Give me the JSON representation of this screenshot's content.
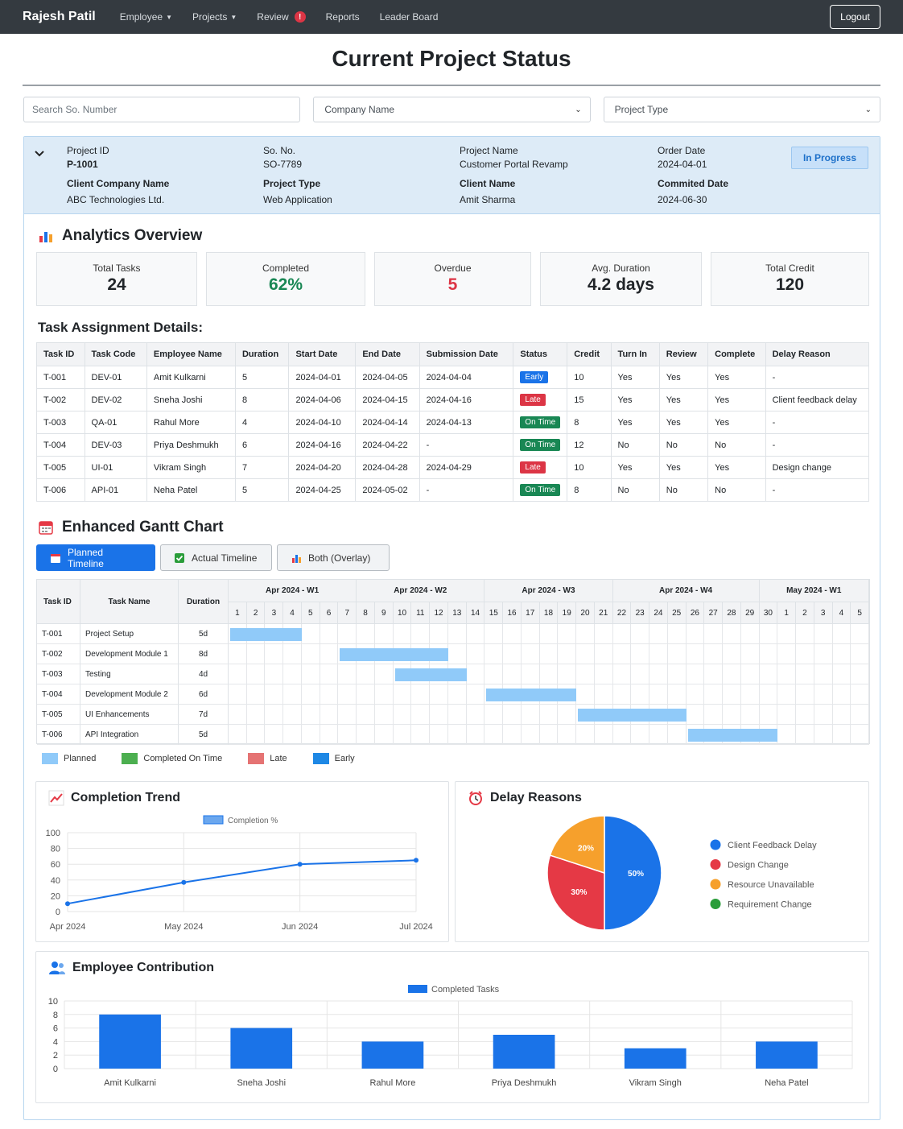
{
  "nav": {
    "brand": "Rajesh Patil",
    "items": [
      "Employee",
      "Projects",
      "Review",
      "Reports",
      "Leader Board"
    ],
    "review_badge": "!",
    "logout": "Logout"
  },
  "page_title": "Current Project Status",
  "filters": {
    "search_placeholder": "Search So. Number",
    "company": "Company Name",
    "type": "Project Type"
  },
  "project": {
    "labels": {
      "id": "Project ID",
      "so": "So. No.",
      "name": "Project Name",
      "order_date": "Order Date",
      "client_company": "Client Company Name",
      "type": "Project Type",
      "client_name": "Client Name",
      "committed": "Commited Date"
    },
    "id": "P-1001",
    "so": "SO-7789",
    "name": "Customer Portal Revamp",
    "order_date": "2024-04-01",
    "client_company": "ABC Technologies Ltd.",
    "type": "Web Application",
    "client_name": "Amit Sharma",
    "committed": "2024-06-30",
    "status": "In Progress"
  },
  "analytics": {
    "title": "Analytics Overview",
    "stats": [
      {
        "label": "Total Tasks",
        "value": "24",
        "color": "#212529"
      },
      {
        "label": "Completed",
        "value": "62%",
        "color": "#198754"
      },
      {
        "label": "Overdue",
        "value": "5",
        "color": "#dc3545"
      },
      {
        "label": "Avg. Duration",
        "value": "4.2 days",
        "color": "#212529"
      },
      {
        "label": "Total Credit",
        "value": "120",
        "color": "#212529"
      }
    ]
  },
  "tasks": {
    "title": "Task Assignment Details:",
    "headers": [
      "Task ID",
      "Task Code",
      "Employee Name",
      "Duration",
      "Start Date",
      "End Date",
      "Submission Date",
      "Status",
      "Credit",
      "Turn In",
      "Review",
      "Complete",
      "Delay Reason"
    ],
    "rows": [
      [
        "T-001",
        "DEV-01",
        "Amit Kulkarni",
        "5",
        "2024-04-01",
        "2024-04-05",
        "2024-04-04",
        "Early",
        "10",
        "Yes",
        "Yes",
        "Yes",
        "-"
      ],
      [
        "T-002",
        "DEV-02",
        "Sneha Joshi",
        "8",
        "2024-04-06",
        "2024-04-15",
        "2024-04-16",
        "Late",
        "15",
        "Yes",
        "Yes",
        "Yes",
        "Client feedback delay"
      ],
      [
        "T-003",
        "QA-01",
        "Rahul More",
        "4",
        "2024-04-10",
        "2024-04-14",
        "2024-04-13",
        "On Time",
        "8",
        "Yes",
        "Yes",
        "Yes",
        "-"
      ],
      [
        "T-004",
        "DEV-03",
        "Priya Deshmukh",
        "6",
        "2024-04-16",
        "2024-04-22",
        "-",
        "On Time",
        "12",
        "No",
        "No",
        "No",
        "-"
      ],
      [
        "T-005",
        "UI-01",
        "Vikram Singh",
        "7",
        "2024-04-20",
        "2024-04-28",
        "2024-04-29",
        "Late",
        "10",
        "Yes",
        "Yes",
        "Yes",
        "Design change"
      ],
      [
        "T-006",
        "API-01",
        "Neha Patel",
        "5",
        "2024-04-25",
        "2024-05-02",
        "-",
        "On Time",
        "8",
        "No",
        "No",
        "No",
        "-"
      ]
    ]
  },
  "gantt": {
    "title": "Enhanced Gantt Chart",
    "tabs": [
      "Planned Timeline",
      "Actual Timeline",
      "Both (Overlay)"
    ],
    "headers": [
      "Task ID",
      "Task Name",
      "Duration"
    ],
    "weeks": [
      "Apr 2024 - W1",
      "Apr 2024 - W2",
      "Apr 2024 - W3",
      "Apr 2024 - W4",
      "May 2024 - W1"
    ],
    "days": [
      "1",
      "2",
      "3",
      "4",
      "5",
      "6",
      "7",
      "8",
      "9",
      "10",
      "11",
      "12",
      "13",
      "14",
      "15",
      "16",
      "17",
      "18",
      "19",
      "20",
      "21",
      "22",
      "23",
      "24",
      "25",
      "26",
      "27",
      "28",
      "29",
      "30",
      "1",
      "2",
      "3",
      "4",
      "5"
    ],
    "rows": [
      {
        "id": "T-001",
        "name": "Project Setup",
        "duration": "5d",
        "start_day": 1,
        "end_day": 4
      },
      {
        "id": "T-002",
        "name": "Development Module 1",
        "duration": "8d",
        "start_day": 7,
        "end_day": 12
      },
      {
        "id": "T-003",
        "name": "Testing",
        "duration": "4d",
        "start_day": 10,
        "end_day": 13
      },
      {
        "id": "T-004",
        "name": "Development Module 2",
        "duration": "6d",
        "start_day": 15,
        "end_day": 19
      },
      {
        "id": "T-005",
        "name": "UI Enhancements",
        "duration": "7d",
        "start_day": 20,
        "end_day": 25
      },
      {
        "id": "T-006",
        "name": "API Integration",
        "duration": "5d",
        "start_day": 26,
        "end_day": 30
      }
    ],
    "legend": [
      {
        "label": "Planned",
        "color": "#90caf9"
      },
      {
        "label": "Completed On Time",
        "color": "#4caf50"
      },
      {
        "label": "Late",
        "color": "#e57373"
      },
      {
        "label": "Early",
        "color": "#1e88e5"
      }
    ]
  },
  "chart_data": [
    {
      "type": "line",
      "title": "Completion Trend",
      "legend": "Completion %",
      "categories": [
        "Apr 2024",
        "May 2024",
        "Jun 2024",
        "Jul 2024"
      ],
      "values": [
        10,
        37,
        60,
        65
      ],
      "ylim": [
        0,
        100
      ],
      "yticks": [
        0,
        20,
        40,
        60,
        80,
        100
      ]
    },
    {
      "type": "pie",
      "title": "Delay Reasons",
      "labels": [
        "Client Feedback Delay",
        "Design Change",
        "Resource Unavailable",
        "Requirement Change"
      ],
      "values": [
        50,
        30,
        20,
        0
      ],
      "colors": [
        "#1a73e8",
        "#e53945",
        "#f6a02c",
        "#2a9d3a"
      ]
    },
    {
      "type": "bar",
      "title": "Employee Contribution",
      "legend": "Completed Tasks",
      "categories": [
        "Amit Kulkarni",
        "Sneha Joshi",
        "Rahul More",
        "Priya Deshmukh",
        "Vikram Singh",
        "Neha Patel"
      ],
      "values": [
        8,
        6,
        4,
        5,
        3,
        4
      ],
      "ylim": [
        0,
        10
      ],
      "yticks": [
        0,
        2,
        4,
        6,
        8,
        10
      ]
    }
  ]
}
